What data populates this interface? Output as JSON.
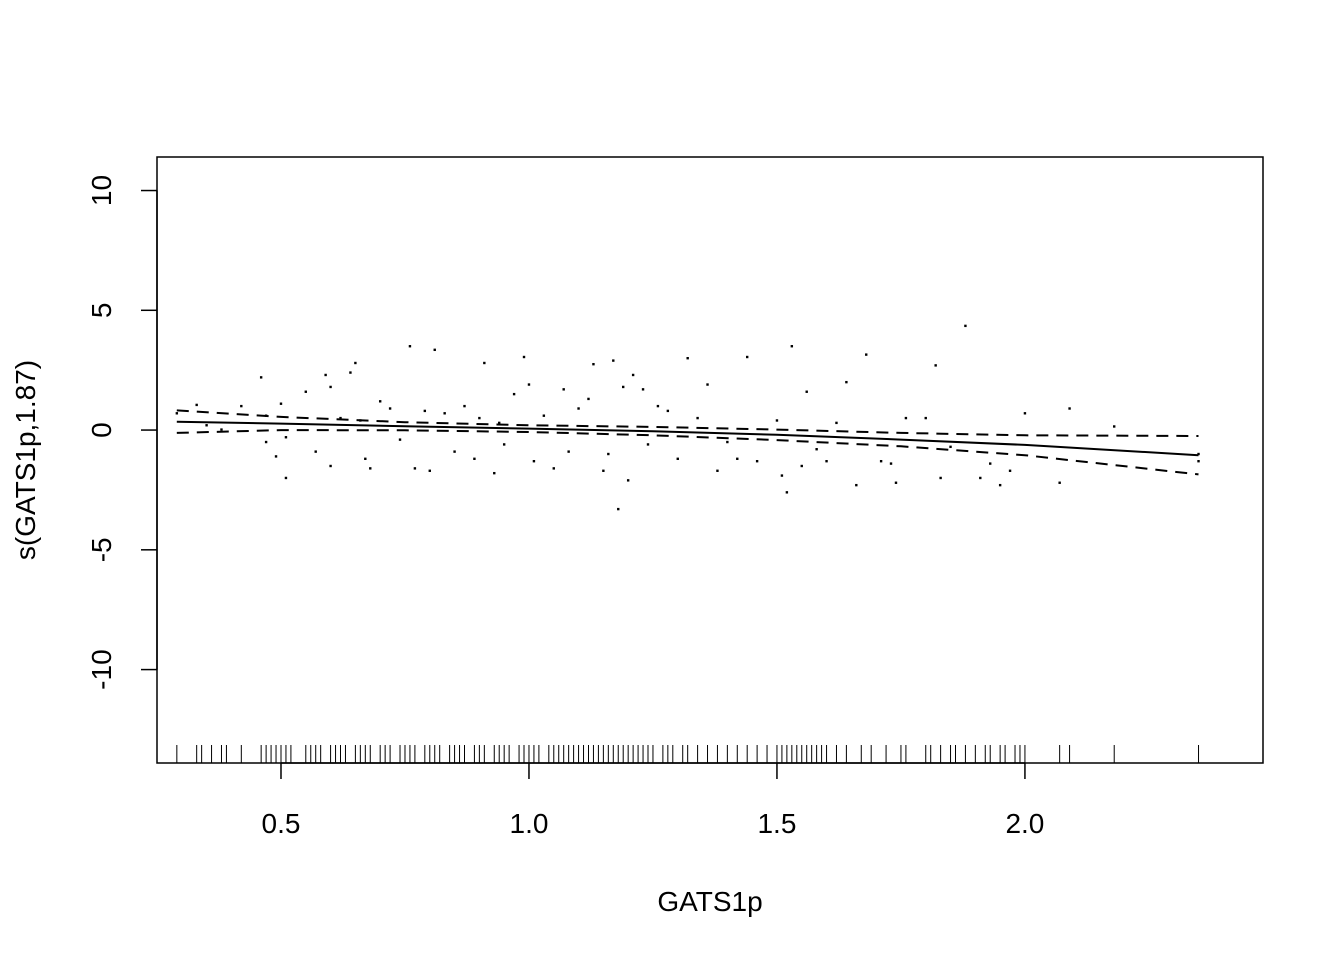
{
  "chart_data": {
    "type": "line",
    "title": "",
    "xlabel": "GATS1p",
    "ylabel": "s(GATS1p,1.87)",
    "xlim": [
      0.25,
      2.48
    ],
    "ylim": [
      -13.9,
      11.4
    ],
    "x_ticks": [
      0.5,
      1.0,
      1.5,
      2.0
    ],
    "x_tick_labels": [
      "0.5",
      "1.0",
      "1.5",
      "2.0"
    ],
    "y_ticks": [
      -10,
      -5,
      0,
      5,
      10
    ],
    "y_tick_labels": [
      "-10",
      "-5",
      "0",
      "5",
      "10"
    ],
    "grid": false,
    "series": [
      {
        "style": "solid",
        "x": [
          0.29,
          0.5,
          0.75,
          1.0,
          1.25,
          1.5,
          1.75,
          2.0,
          2.35
        ],
        "values": [
          0.35,
          0.27,
          0.16,
          0.06,
          -0.05,
          -0.2,
          -0.4,
          -0.62,
          -1.05
        ]
      },
      {
        "style": "dashed",
        "x": [
          0.29,
          0.5,
          0.75,
          1.0,
          1.25,
          1.5,
          1.75,
          2.0,
          2.35
        ],
        "values": [
          0.82,
          0.55,
          0.33,
          0.2,
          0.13,
          0.02,
          -0.12,
          -0.22,
          -0.25
        ]
      },
      {
        "style": "dashed",
        "x": [
          0.29,
          0.5,
          0.75,
          1.0,
          1.25,
          1.5,
          1.75,
          2.0,
          2.35
        ],
        "values": [
          -0.12,
          0.0,
          -0.01,
          -0.08,
          -0.22,
          -0.42,
          -0.68,
          -1.05,
          -1.85
        ]
      }
    ],
    "residual_points": [
      [
        0.29,
        0.7
      ],
      [
        0.33,
        1.05
      ],
      [
        0.35,
        0.2
      ],
      [
        0.38,
        0.02
      ],
      [
        0.42,
        1.0
      ],
      [
        0.46,
        2.2
      ],
      [
        0.47,
        0.6
      ],
      [
        0.47,
        -0.5
      ],
      [
        0.49,
        -1.1
      ],
      [
        0.5,
        1.1
      ],
      [
        0.51,
        -0.3
      ],
      [
        0.51,
        -2.0
      ],
      [
        0.55,
        1.6
      ],
      [
        0.57,
        -0.9
      ],
      [
        0.59,
        2.3
      ],
      [
        0.6,
        1.8
      ],
      [
        0.6,
        -1.5
      ],
      [
        0.62,
        0.5
      ],
      [
        0.64,
        2.4
      ],
      [
        0.65,
        2.8
      ],
      [
        0.66,
        0.4
      ],
      [
        0.67,
        -1.2
      ],
      [
        0.68,
        -1.6
      ],
      [
        0.7,
        1.2
      ],
      [
        0.72,
        0.9
      ],
      [
        0.74,
        -0.4
      ],
      [
        0.76,
        3.5
      ],
      [
        0.77,
        -1.6
      ],
      [
        0.79,
        0.8
      ],
      [
        0.8,
        -1.7
      ],
      [
        0.81,
        3.35
      ],
      [
        0.83,
        0.7
      ],
      [
        0.85,
        -0.9
      ],
      [
        0.87,
        1.0
      ],
      [
        0.89,
        -1.2
      ],
      [
        0.9,
        0.5
      ],
      [
        0.91,
        2.8
      ],
      [
        0.93,
        -1.8
      ],
      [
        0.94,
        0.3
      ],
      [
        0.95,
        -0.6
      ],
      [
        0.97,
        1.5
      ],
      [
        0.99,
        3.05
      ],
      [
        1.0,
        1.9
      ],
      [
        1.01,
        -1.3
      ],
      [
        1.03,
        0.6
      ],
      [
        1.05,
        -1.6
      ],
      [
        1.07,
        1.7
      ],
      [
        1.08,
        -0.9
      ],
      [
        1.1,
        0.9
      ],
      [
        1.12,
        1.3
      ],
      [
        1.13,
        2.75
      ],
      [
        1.15,
        -1.7
      ],
      [
        1.16,
        -1.0
      ],
      [
        1.17,
        2.9
      ],
      [
        1.18,
        -3.3
      ],
      [
        1.19,
        1.8
      ],
      [
        1.2,
        -2.1
      ],
      [
        1.21,
        2.3
      ],
      [
        1.23,
        1.7
      ],
      [
        1.24,
        -0.6
      ],
      [
        1.26,
        1.0
      ],
      [
        1.28,
        0.8
      ],
      [
        1.3,
        -1.2
      ],
      [
        1.32,
        3.0
      ],
      [
        1.34,
        0.5
      ],
      [
        1.36,
        1.9
      ],
      [
        1.38,
        -1.7
      ],
      [
        1.4,
        -0.5
      ],
      [
        1.42,
        -1.2
      ],
      [
        1.44,
        3.05
      ],
      [
        1.46,
        -1.3
      ],
      [
        1.5,
        0.4
      ],
      [
        1.51,
        -1.9
      ],
      [
        1.52,
        -2.6
      ],
      [
        1.53,
        3.5
      ],
      [
        1.55,
        -1.5
      ],
      [
        1.56,
        1.6
      ],
      [
        1.58,
        -0.8
      ],
      [
        1.6,
        -1.3
      ],
      [
        1.62,
        0.3
      ],
      [
        1.64,
        2.0
      ],
      [
        1.66,
        -2.3
      ],
      [
        1.68,
        3.15
      ],
      [
        1.71,
        -1.3
      ],
      [
        1.73,
        -1.4
      ],
      [
        1.74,
        -2.2
      ],
      [
        1.76,
        0.5
      ],
      [
        1.8,
        0.5
      ],
      [
        1.82,
        2.7
      ],
      [
        1.83,
        -2.0
      ],
      [
        1.85,
        -0.7
      ],
      [
        1.88,
        4.35
      ],
      [
        1.91,
        -2.0
      ],
      [
        1.93,
        -1.4
      ],
      [
        1.95,
        -2.3
      ],
      [
        1.97,
        -1.7
      ],
      [
        2.0,
        0.7
      ],
      [
        2.07,
        -2.2
      ],
      [
        2.09,
        0.9
      ],
      [
        2.18,
        0.15
      ],
      [
        2.35,
        -1.3
      ],
      [
        2.35,
        -1.0
      ]
    ],
    "rug_x": [
      0.29,
      0.33,
      0.34,
      0.36,
      0.38,
      0.39,
      0.42,
      0.46,
      0.47,
      0.48,
      0.49,
      0.5,
      0.51,
      0.52,
      0.55,
      0.56,
      0.57,
      0.58,
      0.6,
      0.61,
      0.62,
      0.63,
      0.65,
      0.66,
      0.67,
      0.68,
      0.7,
      0.71,
      0.72,
      0.74,
      0.75,
      0.76,
      0.77,
      0.79,
      0.8,
      0.81,
      0.82,
      0.84,
      0.85,
      0.86,
      0.87,
      0.89,
      0.9,
      0.91,
      0.93,
      0.94,
      0.95,
      0.96,
      0.98,
      0.99,
      1.0,
      1.01,
      1.02,
      1.04,
      1.05,
      1.06,
      1.07,
      1.08,
      1.09,
      1.1,
      1.11,
      1.12,
      1.13,
      1.14,
      1.15,
      1.16,
      1.17,
      1.18,
      1.19,
      1.2,
      1.21,
      1.22,
      1.23,
      1.24,
      1.25,
      1.27,
      1.28,
      1.29,
      1.31,
      1.32,
      1.34,
      1.36,
      1.38,
      1.4,
      1.42,
      1.44,
      1.46,
      1.48,
      1.5,
      1.51,
      1.52,
      1.53,
      1.54,
      1.55,
      1.56,
      1.57,
      1.58,
      1.59,
      1.6,
      1.62,
      1.64,
      1.67,
      1.69,
      1.72,
      1.75,
      1.76,
      1.8,
      1.81,
      1.83,
      1.85,
      1.86,
      1.88,
      1.9,
      1.92,
      1.93,
      1.95,
      1.96,
      1.98,
      1.99,
      2.0,
      2.07,
      2.09,
      2.18,
      2.35
    ]
  }
}
